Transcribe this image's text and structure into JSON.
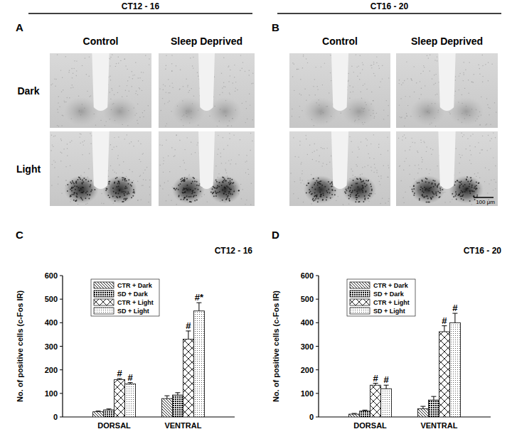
{
  "micrographs": [
    {
      "panel": "A",
      "header": "CT12 - 16",
      "columns": [
        "Control",
        "Sleep Deprived"
      ],
      "rows": [
        "Dark",
        "Light"
      ]
    },
    {
      "panel": "B",
      "header": "CT16 - 20",
      "columns": [
        "Control",
        "Sleep Deprived"
      ],
      "scale_bar": "100 μm"
    }
  ],
  "chart_data": [
    {
      "type": "bar",
      "panel": "C",
      "title": "CT12 - 16",
      "ylabel": "No. of positive cells (c-Fos IR)",
      "categories": [
        "DORSAL",
        "VENTRAL"
      ],
      "ylim": [
        0,
        600
      ],
      "yticks": [
        0,
        100,
        200,
        300,
        400,
        500,
        600
      ],
      "legend": "upper left",
      "series": [
        {
          "name": "CTR + Dark",
          "color": "#222222",
          "values": [
            22,
            78
          ],
          "errors": [
            3,
            12
          ],
          "significance": [
            null,
            null
          ]
        },
        {
          "name": "SD + Dark",
          "color": "#111111",
          "values": [
            30,
            93
          ],
          "errors": [
            4,
            10
          ],
          "significance": [
            null,
            null
          ]
        },
        {
          "name": "CTR + Light",
          "color": "#222222",
          "values": [
            158,
            330
          ],
          "errors": [
            5,
            35
          ],
          "significance": [
            "#",
            "#"
          ]
        },
        {
          "name": "SD + Light",
          "color": "#444444",
          "values": [
            140,
            450
          ],
          "errors": [
            6,
            35
          ],
          "significance": [
            "#",
            "#*"
          ]
        }
      ]
    },
    {
      "type": "bar",
      "panel": "D",
      "title": "CT16 - 20",
      "ylabel": "No. of positive cells (c-Fos IR)",
      "categories": [
        "DORSAL",
        "VENTRAL"
      ],
      "ylim": [
        0,
        600
      ],
      "yticks": [
        0,
        100,
        200,
        300,
        400,
        500,
        600
      ],
      "legend": "upper left",
      "series": [
        {
          "name": "CTR + Dark",
          "color": "#222222",
          "values": [
            12,
            35
          ],
          "errors": [
            3,
            10
          ],
          "significance": [
            null,
            null
          ]
        },
        {
          "name": "SD + Dark",
          "color": "#111111",
          "values": [
            25,
            72
          ],
          "errors": [
            4,
            15
          ],
          "significance": [
            null,
            null
          ]
        },
        {
          "name": "CTR + Light",
          "color": "#222222",
          "values": [
            135,
            362
          ],
          "errors": [
            8,
            25
          ],
          "significance": [
            "#",
            "#"
          ]
        },
        {
          "name": "SD + Light",
          "color": "#444444",
          "values": [
            120,
            400
          ],
          "errors": [
            15,
            40
          ],
          "significance": [
            "#",
            "#"
          ]
        }
      ]
    }
  ]
}
